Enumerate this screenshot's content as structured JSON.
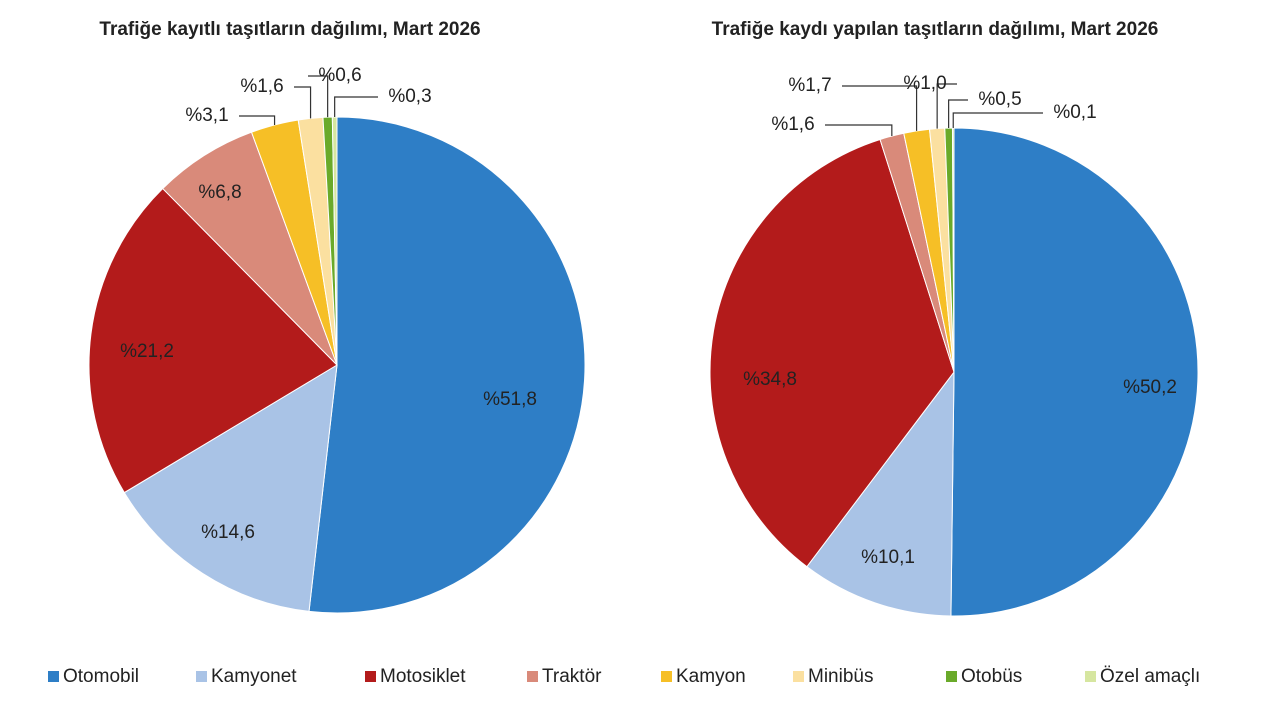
{
  "legend": {
    "categories": [
      "Otomobil",
      "Kamyonet",
      "Motosiklet",
      "Traktör",
      "Kamyon",
      "Minibüs",
      "Otobüs",
      "Özel amaçlı"
    ],
    "colors": [
      "#2e7ec6",
      "#a9c3e6",
      "#b31b1b",
      "#d98a7a",
      "#f6bf26",
      "#fbe0a0",
      "#6aaa2a",
      "#d6e6a0"
    ]
  },
  "chart_data": [
    {
      "type": "pie",
      "title": "Trafiğe kayıtlı taşıtların dağılımı, Mart 2026",
      "values": [
        51.8,
        14.6,
        21.2,
        6.8,
        3.1,
        1.6,
        0.6,
        0.3
      ],
      "value_labels": [
        "%51,8",
        "%14,6",
        "%21,2",
        "%6,8",
        "%3,1",
        "%1,6",
        "%0,6",
        "%0,3"
      ]
    },
    {
      "type": "pie",
      "title": "Trafiğe kaydı yapılan taşıtların dağılımı, Mart 2026",
      "values": [
        50.2,
        10.1,
        34.8,
        1.6,
        1.7,
        1.0,
        0.5,
        0.1
      ],
      "value_labels": [
        "%50,2",
        "%10,1",
        "%34,8",
        "%1,6",
        "%1,7",
        "%1,0",
        "%0,5",
        "%0,1"
      ]
    }
  ]
}
